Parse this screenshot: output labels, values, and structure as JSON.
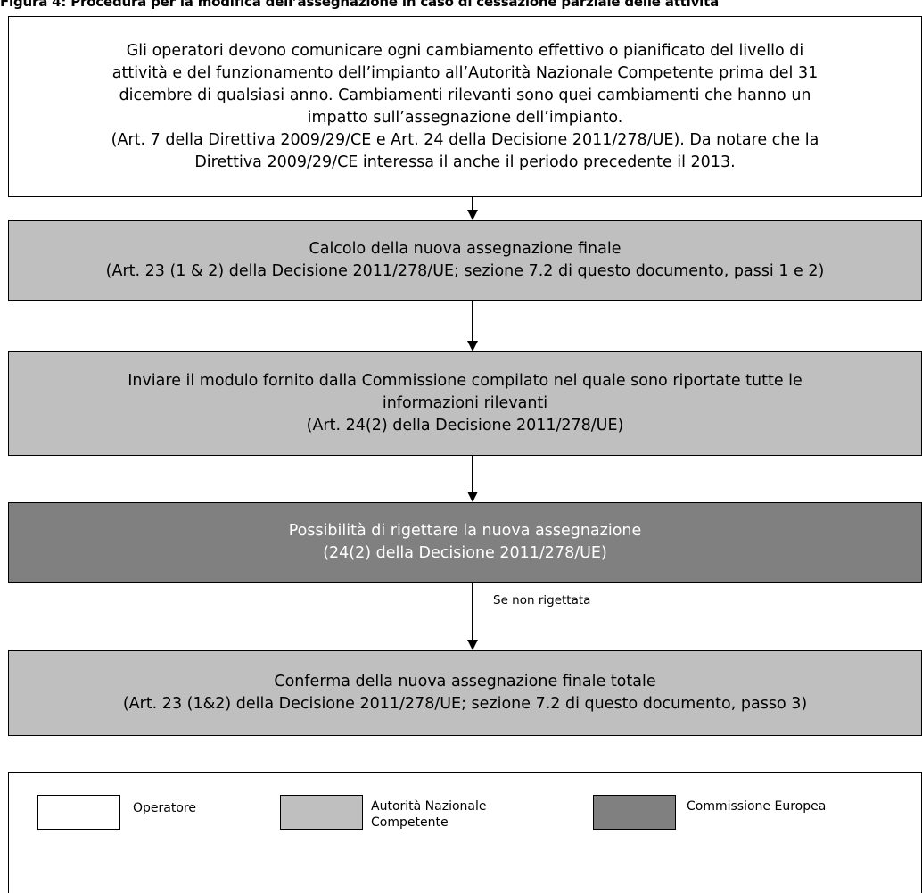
{
  "figure": {
    "title": "Figura 4: Procedura per la modifica dell’assegnazione in caso di cessazione parziale delle attività"
  },
  "boxes": {
    "box1": {
      "lines": [
        "Gli operatori devono comunicare ogni cambiamento effettivo o pianificato del livello di",
        "attività e del funzionamento dell’impianto all’Autorità Nazionale Competente prima del 31",
        "dicembre di qualsiasi anno. Cambiamenti rilevanti sono quei cambiamenti che hanno un",
        "impatto sull’assegnazione dell’impianto.",
        "(Art. 7 della Direttiva 2009/29/CE e Art. 24 della Decisione 2011/278/UE). Da notare che la",
        "Direttiva 2009/29/CE interessa il anche il periodo precedente il 2013."
      ]
    },
    "box2": {
      "lines": [
        "Calcolo della nuova assegnazione finale",
        "(Art. 23 (1 & 2) della Decisione 2011/278/UE; sezione 7.2 di questo documento, passi 1 e 2)"
      ]
    },
    "box3": {
      "lines": [
        "Inviare il modulo fornito dalla Commissione  compilato nel quale sono riportate tutte le",
        "informazioni rilevanti",
        "(Art. 24(2) della Decisione 2011/278/UE)"
      ]
    },
    "box4": {
      "lines": [
        "Possibilità di rigettare la nuova assegnazione",
        "(24(2) della Decisione 2011/278/UE)"
      ]
    },
    "box5": {
      "lines": [
        "Conferma della nuova assegnazione finale totale",
        "(Art. 23 (1&2) della Decisione 2011/278/UE; sezione 7.2 di questo documento, passo 3)"
      ]
    }
  },
  "edges": {
    "box4_to_box5_label": "Se non rigettata"
  },
  "legend": {
    "operatore": {
      "label": "Operatore",
      "color": "#ffffff"
    },
    "autorita": {
      "label_line1": "Autorità Nazionale",
      "label_line2": "Competente",
      "color": "#bfbfbf"
    },
    "commissione": {
      "label": "Commissione Europea",
      "color": "#808080"
    }
  }
}
